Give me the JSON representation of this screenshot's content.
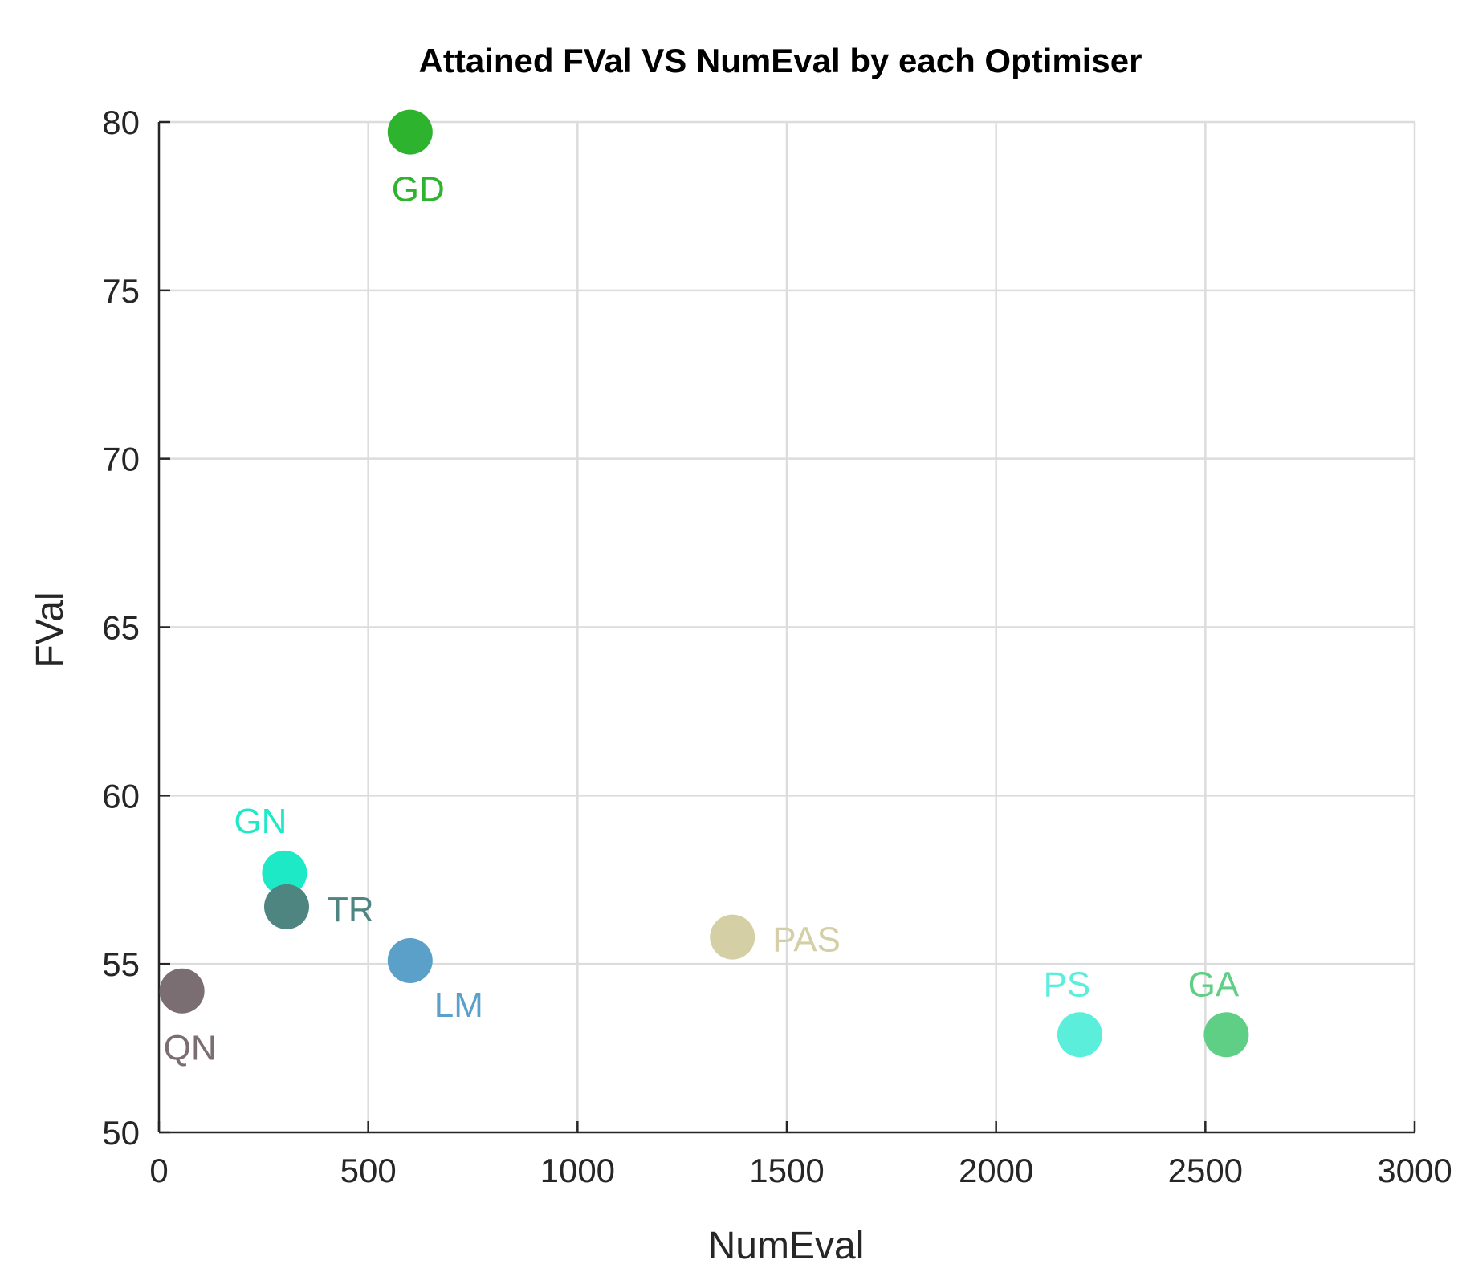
{
  "chart_data": {
    "type": "scatter",
    "title": "Attained FVal VS NumEval by each Optimiser",
    "xlabel": "NumEval",
    "ylabel": "FVal",
    "xlim": [
      0,
      3000
    ],
    "ylim": [
      50,
      80
    ],
    "xticks": [
      0,
      500,
      1000,
      1500,
      2000,
      2500,
      3000
    ],
    "yticks": [
      50,
      55,
      60,
      65,
      70,
      75,
      80
    ],
    "grid": true,
    "points": [
      {
        "label": "GD",
        "x": 600,
        "y": 79.7,
        "color": "#2db32d",
        "label_pos": "below"
      },
      {
        "label": "GN",
        "x": 300,
        "y": 57.7,
        "color": "#1de9c6",
        "label_pos": "above-left"
      },
      {
        "label": "TR",
        "x": 305,
        "y": 56.7,
        "color": "#4f8580",
        "label_pos": "right"
      },
      {
        "label": "LM",
        "x": 600,
        "y": 55.1,
        "color": "#5ba0c9",
        "label_pos": "below-right"
      },
      {
        "label": "QN",
        "x": 55,
        "y": 54.2,
        "color": "#7b6e72",
        "label_pos": "below"
      },
      {
        "label": "PAS",
        "x": 1370,
        "y": 55.8,
        "color": "#d5cfa5",
        "label_pos": "right"
      },
      {
        "label": "PS",
        "x": 2200,
        "y": 52.9,
        "color": "#5aeedb",
        "label_pos": "above"
      },
      {
        "label": "GA",
        "x": 2550,
        "y": 52.9,
        "color": "#5fcf85",
        "label_pos": "above"
      }
    ]
  }
}
